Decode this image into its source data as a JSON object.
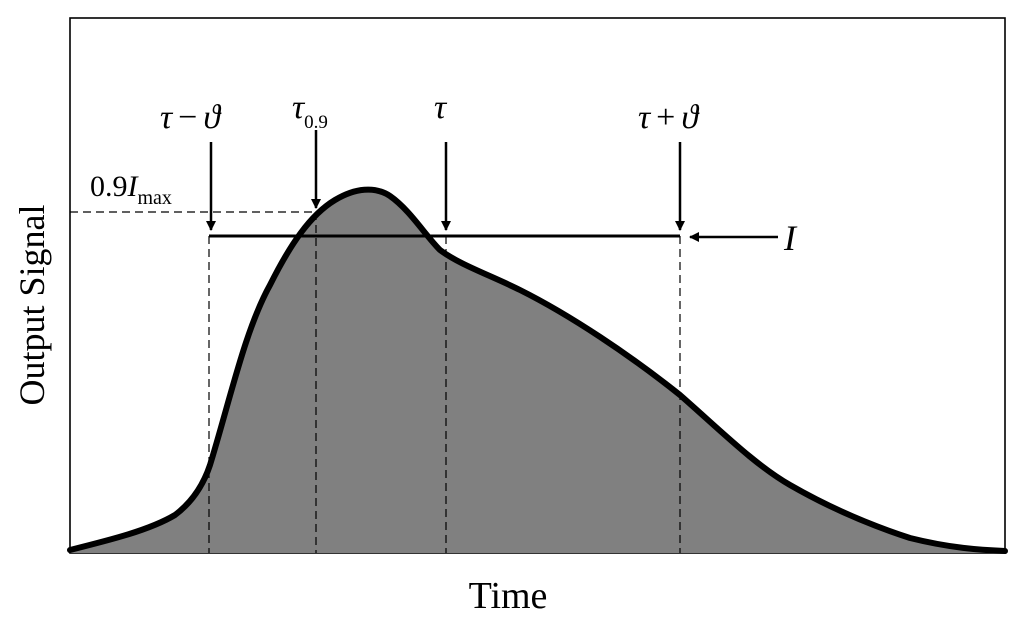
{
  "axis": {
    "xlabel": "Time",
    "ylabel": "Output Signal"
  },
  "markers": {
    "tau_minus": {
      "tau": "τ",
      "op": "−",
      "theta": "ϑ"
    },
    "tau_09": {
      "tau": "τ",
      "sub": "0.9"
    },
    "tau": {
      "tau": "τ"
    },
    "tau_plus": {
      "tau": "τ",
      "op": "+",
      "theta": "ϑ"
    }
  },
  "threshold_label": {
    "coef": "0.9",
    "var": "I",
    "sub": "max"
  },
  "level_label": "I",
  "colors": {
    "fill": "#808080",
    "curve": "#000000",
    "frame": "#000000"
  }
}
